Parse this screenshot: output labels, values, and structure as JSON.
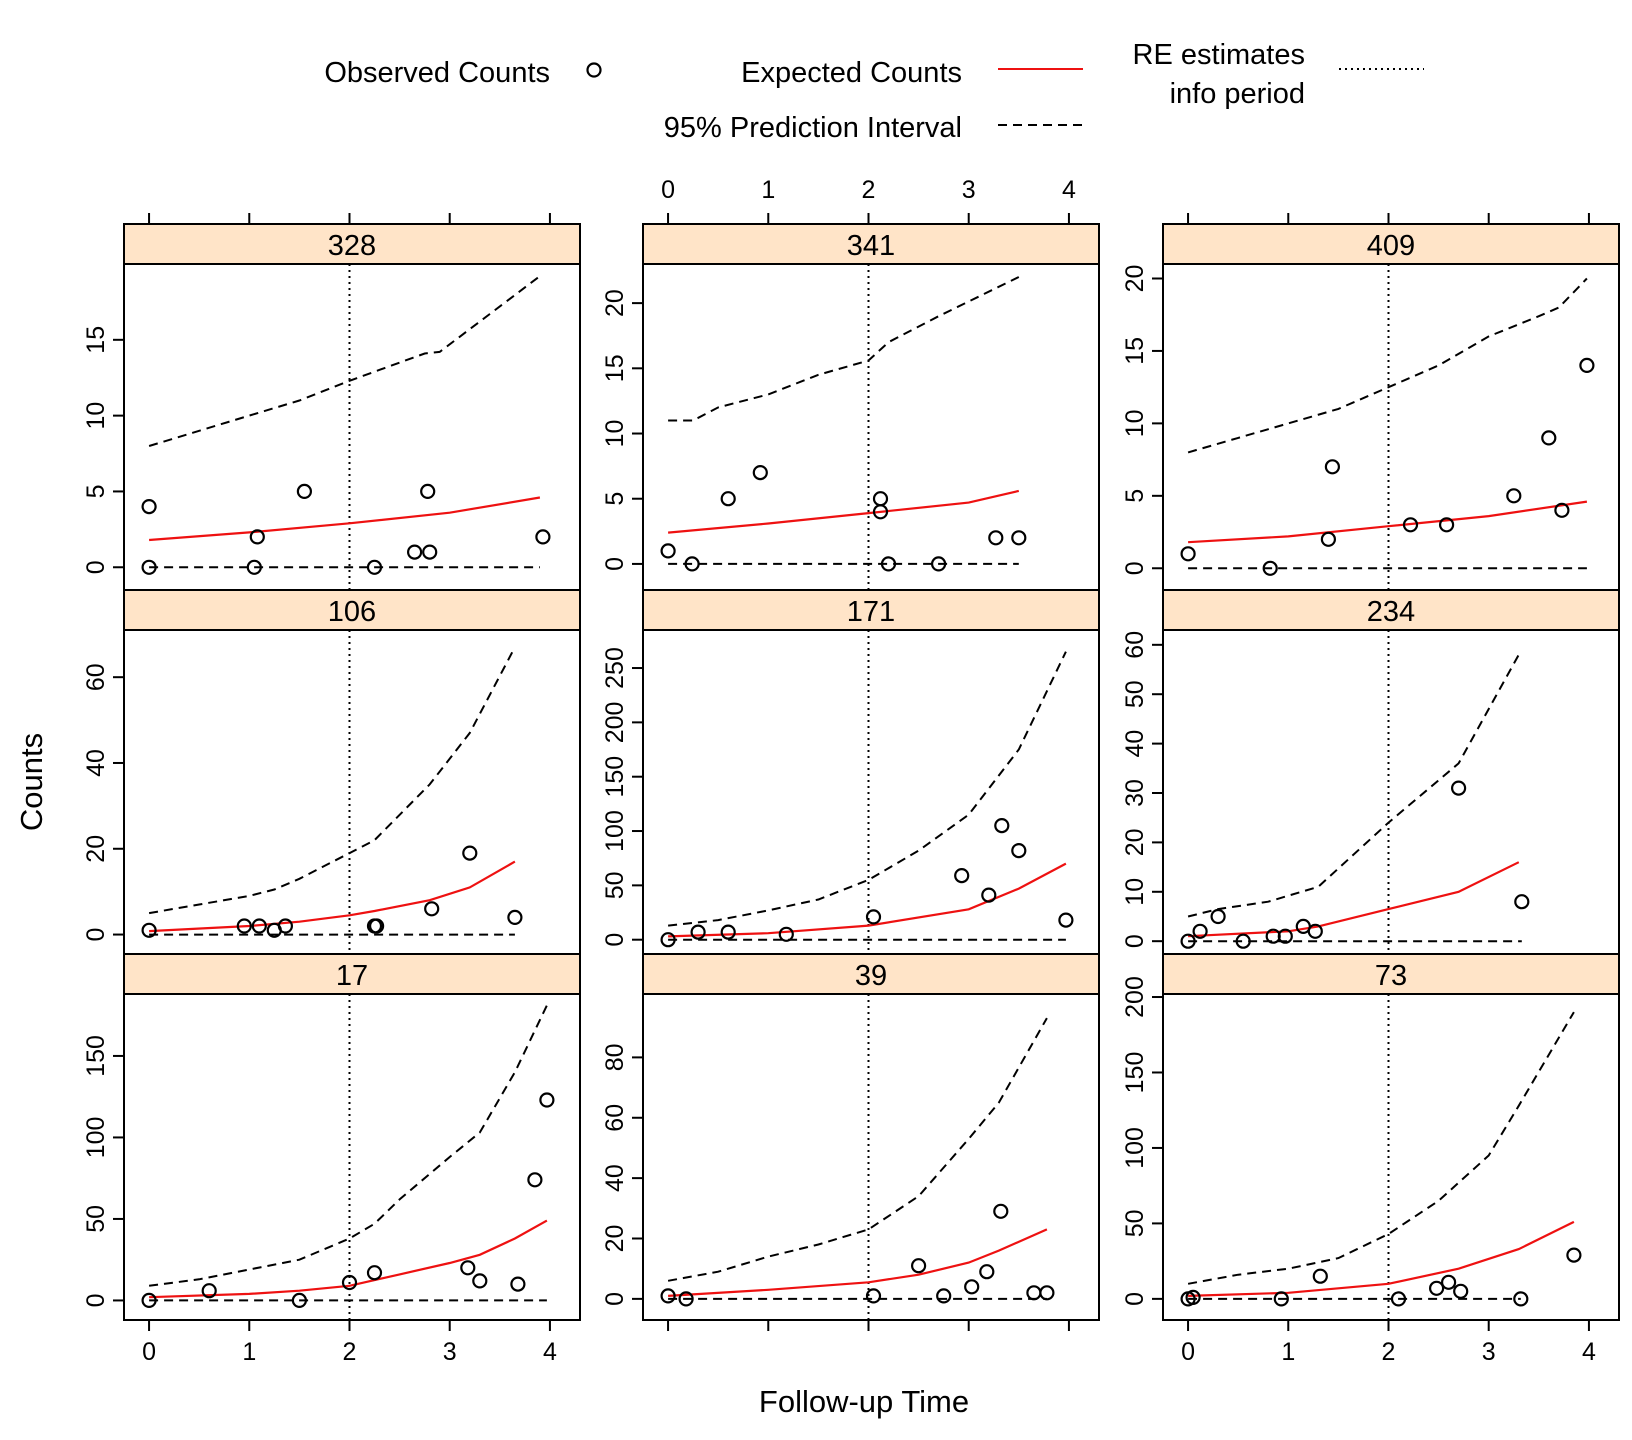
{
  "chart_data": {
    "type": "scatter",
    "xlabel": "Follow-up Time",
    "ylabel": "Counts",
    "xlim": [
      -0.25,
      4.3
    ],
    "x_ticks": [
      0,
      1,
      2,
      3,
      4
    ],
    "info_period_x": 2,
    "legend": {
      "placement": "top",
      "observed": "Observed Counts",
      "expected": "Expected Counts",
      "interval": "95% Prediction Interval",
      "re_line1": "RE estimates",
      "re_line2": "info period"
    },
    "colors": {
      "expected": "#ee1111",
      "strip": "#ffe4c8",
      "ink": "#000000"
    },
    "panels": [
      {
        "id": "328",
        "ylim": [
          -1.5,
          20
        ],
        "yticks": [
          0,
          5,
          10,
          15
        ],
        "observed": [
          [
            0,
            4
          ],
          [
            0,
            0
          ],
          [
            1.08,
            2
          ],
          [
            1.05,
            0
          ],
          [
            1.55,
            5
          ],
          [
            2.25,
            0
          ],
          [
            2.65,
            1
          ],
          [
            2.78,
            5
          ],
          [
            2.8,
            1
          ],
          [
            3.93,
            2
          ]
        ],
        "expected": [
          [
            0,
            1.8
          ],
          [
            1,
            2.3
          ],
          [
            2,
            2.9
          ],
          [
            3,
            3.6
          ],
          [
            3.9,
            4.6
          ]
        ],
        "upper": [
          [
            0,
            8
          ],
          [
            0.5,
            9
          ],
          [
            1,
            10
          ],
          [
            1.5,
            11
          ],
          [
            2,
            12.3
          ],
          [
            2.5,
            13.5
          ],
          [
            2.75,
            14.1
          ],
          [
            2.9,
            14.2
          ],
          [
            3.9,
            19.2
          ]
        ],
        "lower": [
          [
            0,
            0
          ],
          [
            3.9,
            0
          ]
        ]
      },
      {
        "id": "341",
        "ylim": [
          -2,
          23
        ],
        "yticks": [
          0,
          5,
          10,
          15,
          20
        ],
        "observed": [
          [
            0,
            1
          ],
          [
            0.24,
            0
          ],
          [
            0.6,
            5
          ],
          [
            0.92,
            7
          ],
          [
            2.12,
            5
          ],
          [
            2.12,
            4
          ],
          [
            2.2,
            0
          ],
          [
            2.7,
            0
          ],
          [
            3.27,
            2
          ],
          [
            3.5,
            2
          ]
        ],
        "expected": [
          [
            0,
            2.4
          ],
          [
            1,
            3.1
          ],
          [
            2,
            3.9
          ],
          [
            3,
            4.7
          ],
          [
            3.5,
            5.6
          ]
        ],
        "upper": [
          [
            0,
            11
          ],
          [
            0.25,
            11
          ],
          [
            0.5,
            12
          ],
          [
            1,
            13
          ],
          [
            1.5,
            14.5
          ],
          [
            2,
            15.6
          ],
          [
            2.2,
            17
          ],
          [
            2.7,
            19
          ],
          [
            3.5,
            22
          ]
        ],
        "lower": [
          [
            0,
            0
          ],
          [
            3.5,
            0
          ]
        ]
      },
      {
        "id": "409",
        "ylim": [
          -1.5,
          21
        ],
        "yticks": [
          0,
          5,
          10,
          15,
          20
        ],
        "observed": [
          [
            0,
            1
          ],
          [
            0.82,
            0
          ],
          [
            1.4,
            2
          ],
          [
            1.44,
            7
          ],
          [
            2.22,
            3
          ],
          [
            2.58,
            3
          ],
          [
            3.25,
            5
          ],
          [
            3.6,
            9
          ],
          [
            3.73,
            4
          ],
          [
            3.98,
            14
          ]
        ],
        "expected": [
          [
            0,
            1.8
          ],
          [
            1,
            2.2
          ],
          [
            2,
            2.9
          ],
          [
            3,
            3.6
          ],
          [
            3.98,
            4.6
          ]
        ],
        "upper": [
          [
            0,
            8
          ],
          [
            0.5,
            9
          ],
          [
            1,
            10
          ],
          [
            1.5,
            11
          ],
          [
            2,
            12.5
          ],
          [
            2.5,
            14
          ],
          [
            3,
            16
          ],
          [
            3.5,
            17.4
          ],
          [
            3.7,
            18
          ],
          [
            3.98,
            20
          ]
        ],
        "lower": [
          [
            0,
            0
          ],
          [
            3.98,
            0
          ]
        ]
      },
      {
        "id": "106",
        "ylim": [
          -5,
          71
        ],
        "yticks": [
          0,
          20,
          40,
          60
        ],
        "observed": [
          [
            0,
            1
          ],
          [
            0.95,
            2
          ],
          [
            1.1,
            2
          ],
          [
            1.25,
            1
          ],
          [
            1.36,
            2
          ],
          [
            2.25,
            2
          ],
          [
            2.27,
            2
          ],
          [
            2.82,
            6
          ],
          [
            3.2,
            19
          ],
          [
            3.65,
            4
          ]
        ],
        "expected": [
          [
            0,
            0.8
          ],
          [
            1,
            2
          ],
          [
            1.5,
            3
          ],
          [
            2,
            4.5
          ],
          [
            2.25,
            5.5
          ],
          [
            2.8,
            8
          ],
          [
            3.2,
            11
          ],
          [
            3.65,
            17
          ]
        ],
        "upper": [
          [
            0,
            5
          ],
          [
            0.5,
            7
          ],
          [
            1,
            9
          ],
          [
            1.25,
            10.5
          ],
          [
            1.5,
            13
          ],
          [
            2,
            19
          ],
          [
            2.25,
            22
          ],
          [
            2.8,
            35
          ],
          [
            3.2,
            47
          ],
          [
            3.65,
            67
          ]
        ],
        "lower": [
          [
            0,
            0
          ],
          [
            3.65,
            0
          ]
        ]
      },
      {
        "id": "171",
        "ylim": [
          -15,
          285
        ],
        "yticks": [
          0,
          50,
          100,
          150,
          200,
          250
        ],
        "observed": [
          [
            0,
            0
          ],
          [
            0.3,
            7
          ],
          [
            0.6,
            7
          ],
          [
            1.18,
            5
          ],
          [
            2.05,
            21
          ],
          [
            2.93,
            59
          ],
          [
            3.2,
            41
          ],
          [
            3.33,
            105
          ],
          [
            3.5,
            82
          ],
          [
            3.97,
            18
          ]
        ],
        "expected": [
          [
            0,
            3
          ],
          [
            1,
            6
          ],
          [
            2,
            13
          ],
          [
            3,
            28
          ],
          [
            3.5,
            47
          ],
          [
            3.97,
            70
          ]
        ],
        "upper": [
          [
            0,
            13
          ],
          [
            0.5,
            18
          ],
          [
            1,
            27
          ],
          [
            1.5,
            37
          ],
          [
            2,
            55
          ],
          [
            2.5,
            82
          ],
          [
            3,
            115
          ],
          [
            3.5,
            175
          ],
          [
            3.97,
            265
          ]
        ],
        "lower": [
          [
            0,
            0
          ],
          [
            3.97,
            0
          ]
        ]
      },
      {
        "id": "234",
        "ylim": [
          -3,
          63
        ],
        "yticks": [
          0,
          10,
          20,
          30,
          40,
          50,
          60
        ],
        "observed": [
          [
            0,
            0
          ],
          [
            0.12,
            2
          ],
          [
            0.3,
            5
          ],
          [
            0.55,
            0
          ],
          [
            0.85,
            1
          ],
          [
            0.97,
            1
          ],
          [
            1.15,
            3
          ],
          [
            1.27,
            2
          ],
          [
            2.7,
            31
          ],
          [
            3.33,
            8
          ]
        ],
        "expected": [
          [
            0,
            1
          ],
          [
            1,
            2
          ],
          [
            1.3,
            3
          ],
          [
            2,
            6.5
          ],
          [
            2.7,
            10
          ],
          [
            3.3,
            16
          ]
        ],
        "upper": [
          [
            0,
            5
          ],
          [
            0.3,
            6.5
          ],
          [
            0.8,
            8
          ],
          [
            1.3,
            11
          ],
          [
            2,
            24
          ],
          [
            2.7,
            36
          ],
          [
            3.3,
            58
          ]
        ],
        "lower": [
          [
            0,
            0
          ],
          [
            3.33,
            0
          ]
        ]
      },
      {
        "id": "17",
        "ylim": [
          -12,
          188
        ],
        "yticks": [
          0,
          50,
          100,
          150
        ],
        "observed": [
          [
            0,
            0
          ],
          [
            0.6,
            6
          ],
          [
            1.5,
            0
          ],
          [
            2,
            11
          ],
          [
            2.25,
            17
          ],
          [
            3.18,
            20
          ],
          [
            3.3,
            12
          ],
          [
            3.68,
            10
          ],
          [
            3.85,
            74
          ],
          [
            3.97,
            123
          ]
        ],
        "expected": [
          [
            0,
            2
          ],
          [
            1,
            4
          ],
          [
            1.5,
            6
          ],
          [
            2,
            9
          ],
          [
            2.5,
            16
          ],
          [
            3,
            23
          ],
          [
            3.3,
            28
          ],
          [
            3.65,
            38
          ],
          [
            3.97,
            49
          ]
        ],
        "upper": [
          [
            0,
            9
          ],
          [
            0.5,
            13
          ],
          [
            1,
            19
          ],
          [
            1.5,
            25
          ],
          [
            2,
            38
          ],
          [
            2.25,
            47
          ],
          [
            2.5,
            62
          ],
          [
            3,
            88
          ],
          [
            3.3,
            103
          ],
          [
            3.65,
            140
          ],
          [
            3.97,
            181
          ]
        ],
        "lower": [
          [
            0,
            0
          ],
          [
            3.97,
            0
          ]
        ]
      },
      {
        "id": "39",
        "ylim": [
          -7,
          101
        ],
        "yticks": [
          0,
          20,
          40,
          60,
          80
        ],
        "observed": [
          [
            0,
            1
          ],
          [
            0.18,
            0
          ],
          [
            2.05,
            1
          ],
          [
            2.5,
            11
          ],
          [
            2.75,
            1
          ],
          [
            3.03,
            4
          ],
          [
            3.18,
            9
          ],
          [
            3.32,
            29
          ],
          [
            3.65,
            2
          ],
          [
            3.78,
            2
          ]
        ],
        "expected": [
          [
            0,
            1
          ],
          [
            1,
            3
          ],
          [
            2,
            5.5
          ],
          [
            2.5,
            8
          ],
          [
            3,
            12
          ],
          [
            3.3,
            16
          ],
          [
            3.78,
            23
          ]
        ],
        "upper": [
          [
            0,
            6
          ],
          [
            0.5,
            9
          ],
          [
            1,
            14
          ],
          [
            1.5,
            18
          ],
          [
            2,
            23
          ],
          [
            2.5,
            34
          ],
          [
            3,
            53
          ],
          [
            3.3,
            65
          ],
          [
            3.78,
            93
          ]
        ],
        "lower": [
          [
            0,
            0
          ],
          [
            3.78,
            0
          ]
        ]
      },
      {
        "id": "73",
        "ylim": [
          -14,
          202
        ],
        "yticks": [
          0,
          50,
          100,
          150,
          200
        ],
        "observed": [
          [
            0,
            0
          ],
          [
            0.05,
            1
          ],
          [
            0.93,
            0
          ],
          [
            1.32,
            15
          ],
          [
            2.1,
            0
          ],
          [
            2.48,
            7
          ],
          [
            2.6,
            11
          ],
          [
            2.72,
            5
          ],
          [
            3.32,
            0
          ],
          [
            3.85,
            29
          ]
        ],
        "expected": [
          [
            0,
            2
          ],
          [
            1,
            4
          ],
          [
            2,
            10
          ],
          [
            2.7,
            20
          ],
          [
            3.3,
            33
          ],
          [
            3.85,
            51
          ]
        ],
        "upper": [
          [
            0,
            10
          ],
          [
            0.5,
            16
          ],
          [
            1,
            20
          ],
          [
            1.5,
            27
          ],
          [
            2,
            43
          ],
          [
            2.5,
            65
          ],
          [
            3,
            95
          ],
          [
            3.3,
            128
          ],
          [
            3.85,
            190
          ]
        ],
        "lower": [
          [
            0,
            0
          ],
          [
            3.32,
            0
          ]
        ]
      }
    ]
  }
}
